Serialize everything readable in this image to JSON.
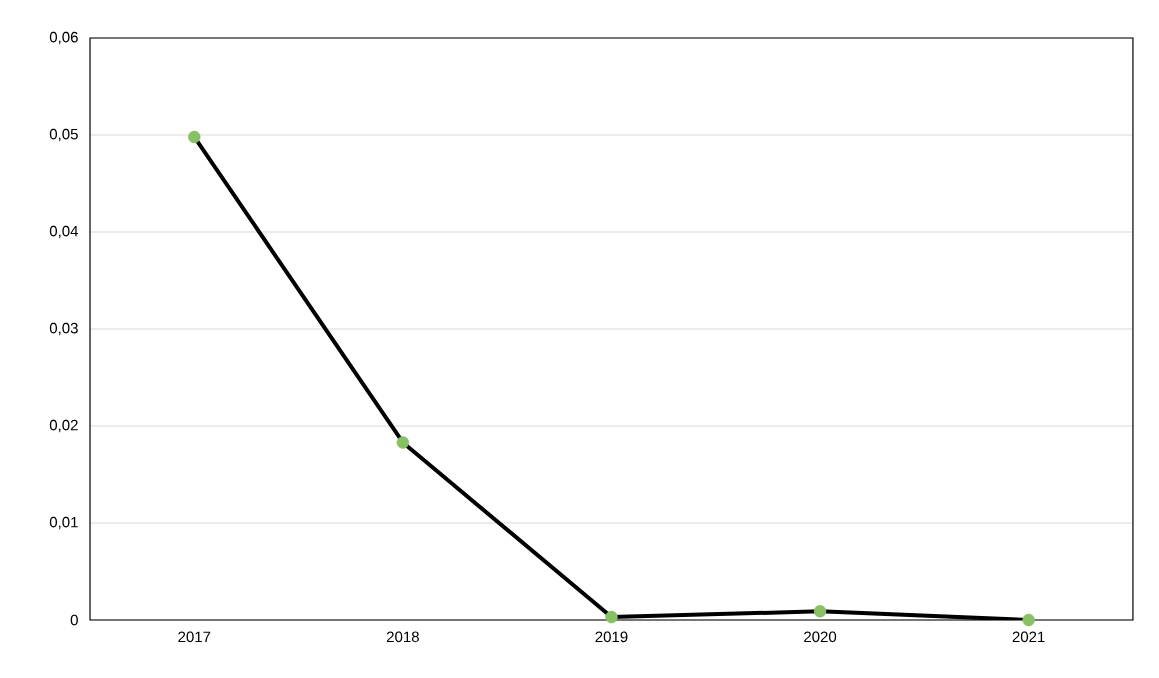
{
  "chart_data": {
    "type": "line",
    "categories": [
      "2017",
      "2018",
      "2019",
      "2020",
      "2021"
    ],
    "series": [
      {
        "color": "#000000",
        "colors": [
          "#88c064",
          "#88c064",
          "#88c064",
          "#88c064",
          "#88c064"
        ],
        "values": [
          0.0498,
          0.0183,
          0.0003,
          0.0009,
          0.0
        ]
      }
    ],
    "marker": "circle",
    "line_style": "solid",
    "ylim": [
      0,
      0.06
    ],
    "yticks": [
      {
        "value": 0,
        "label": "0"
      },
      {
        "value": 0.01,
        "label": "0,01"
      },
      {
        "value": 0.02,
        "label": "0,02"
      },
      {
        "value": 0.03,
        "label": "0,03"
      },
      {
        "value": 0.04,
        "label": "0,04"
      },
      {
        "value": 0.05,
        "label": "0,05"
      },
      {
        "value": 0.06,
        "label": "0,06"
      }
    ],
    "grid": "y",
    "legend": false
  }
}
